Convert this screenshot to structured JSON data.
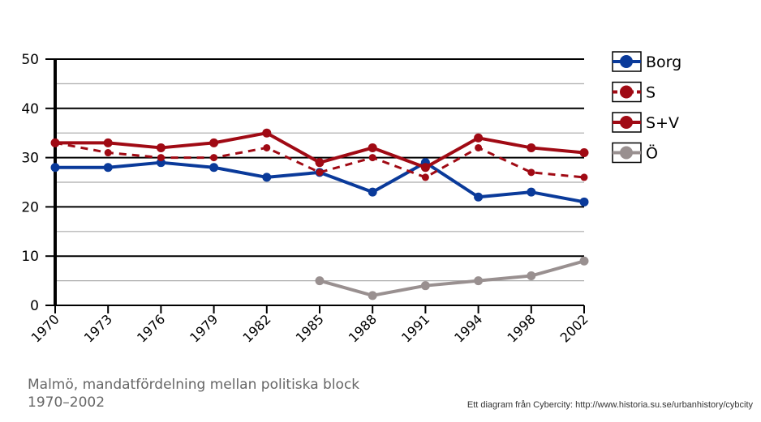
{
  "chart_data": {
    "type": "line",
    "title": "Malmö, mandatfördelning mellan politiska block 1970-2002",
    "xlabel": "",
    "ylabel": "",
    "ylim": [
      0,
      50
    ],
    "yticks": [
      "0",
      "10",
      "20",
      "30",
      "40",
      "50"
    ],
    "categories": [
      "1970",
      "1973",
      "1976",
      "1979",
      "1982",
      "1985",
      "1988",
      "1991",
      "1994",
      "1998",
      "2002"
    ],
    "grid": true,
    "legend_position": "right",
    "series": [
      {
        "name": "Borg",
        "color": "#0a3a9a",
        "dashed": false,
        "values": [
          28,
          28,
          29,
          28,
          26,
          27,
          23,
          29,
          22,
          23,
          21
        ]
      },
      {
        "name": "S",
        "color": "#a00a14",
        "dashed": true,
        "values": [
          33,
          31,
          30,
          30,
          32,
          27,
          30,
          26,
          32,
          27,
          26
        ]
      },
      {
        "name": "S+V",
        "color": "#a00a14",
        "dashed": false,
        "values": [
          33,
          33,
          32,
          33,
          35,
          29,
          32,
          28,
          34,
          32,
          31
        ]
      },
      {
        "name": "Ö",
        "color": "#999090",
        "dashed": false,
        "values": [
          null,
          null,
          null,
          null,
          null,
          5,
          2,
          4,
          5,
          6,
          9
        ]
      }
    ]
  },
  "caption": "Malmö, mandatfördelning mellan politiska block 1970–2002",
  "credit": "Ett diagram från Cybercity: http://www.historia.su.se/urbanhistory/cybcity"
}
